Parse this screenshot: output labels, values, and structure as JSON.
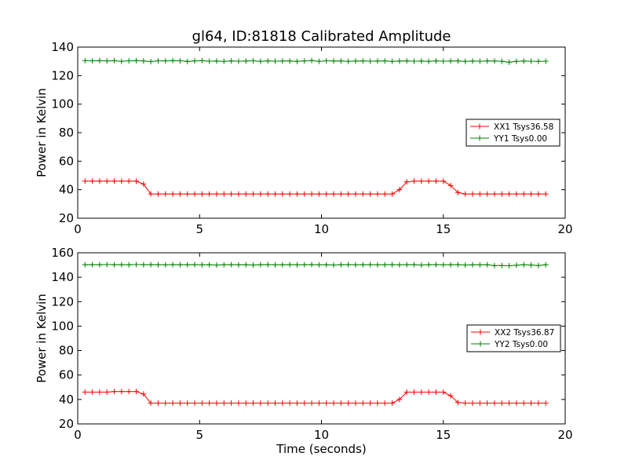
{
  "chart_data": [
    {
      "type": "line",
      "title": "gl64, ID:81818 Calibrated Amplitude",
      "xlabel": "",
      "ylabel": "Power in Kelvin",
      "xlim": [
        0,
        20
      ],
      "ylim": [
        20,
        140
      ],
      "xticks": [
        "0",
        "5",
        "10",
        "15",
        "20"
      ],
      "yticks": [
        "20",
        "40",
        "60",
        "80",
        "100",
        "120",
        "140"
      ],
      "legend_position": "right",
      "grid": false,
      "series": [
        {
          "name": "XX1 Tsys36.58",
          "color": "#ff0000",
          "x": [
            0.3,
            0.6,
            0.9,
            1.2,
            1.5,
            1.8,
            2.1,
            2.4,
            2.7,
            3.0,
            3.3,
            3.6,
            3.9,
            4.2,
            4.5,
            4.8,
            5.1,
            5.4,
            5.7,
            6.0,
            6.3,
            6.6,
            6.9,
            7.2,
            7.5,
            7.8,
            8.1,
            8.4,
            8.7,
            9.0,
            9.3,
            9.6,
            9.9,
            10.2,
            10.5,
            10.8,
            11.1,
            11.4,
            11.7,
            12.0,
            12.3,
            12.6,
            12.9,
            13.2,
            13.5,
            13.8,
            14.1,
            14.4,
            14.7,
            15.0,
            15.3,
            15.6,
            15.9,
            16.2,
            16.5,
            16.8,
            17.1,
            17.4,
            17.7,
            18.0,
            18.3,
            18.6,
            18.9,
            19.2
          ],
          "values": [
            46,
            46,
            46,
            46,
            46,
            46,
            46,
            46,
            44,
            37,
            37,
            37,
            37,
            37,
            37,
            37,
            37,
            37,
            37,
            37,
            37,
            37,
            37,
            37,
            37,
            37,
            37,
            37,
            37,
            37,
            37,
            37,
            37,
            37,
            37,
            37,
            37,
            37,
            37,
            37,
            37,
            37,
            37,
            40,
            45.5,
            46,
            46,
            46,
            46,
            46,
            43,
            38,
            37,
            37,
            37,
            37,
            37,
            37,
            37,
            37,
            37,
            37,
            37,
            37
          ]
        },
        {
          "name": "YY1 Tsys0.00",
          "color": "#008000",
          "x": [
            0.3,
            0.6,
            0.9,
            1.2,
            1.5,
            1.8,
            2.1,
            2.4,
            2.7,
            3.0,
            3.3,
            3.6,
            3.9,
            4.2,
            4.5,
            4.8,
            5.1,
            5.4,
            5.7,
            6.0,
            6.3,
            6.6,
            6.9,
            7.2,
            7.5,
            7.8,
            8.1,
            8.4,
            8.7,
            9.0,
            9.3,
            9.6,
            9.9,
            10.2,
            10.5,
            10.8,
            11.1,
            11.4,
            11.7,
            12.0,
            12.3,
            12.6,
            12.9,
            13.2,
            13.5,
            13.8,
            14.1,
            14.4,
            14.7,
            15.0,
            15.3,
            15.6,
            15.9,
            16.2,
            16.5,
            16.8,
            17.1,
            17.4,
            17.7,
            18.0,
            18.3,
            18.6,
            18.9,
            19.2
          ],
          "values": [
            130.5,
            130.4,
            130.5,
            130.3,
            130.5,
            130.0,
            130.4,
            130.5,
            130.3,
            129.8,
            130.4,
            130.3,
            130.5,
            130.4,
            129.9,
            130.3,
            130.5,
            130.1,
            130.2,
            130.0,
            130.3,
            130.1,
            130.2,
            130.4,
            130.0,
            130.3,
            130.1,
            130.2,
            130.3,
            130.0,
            130.3,
            130.6,
            130.0,
            130.4,
            130.2,
            130.3,
            130.0,
            130.2,
            130.3,
            130.1,
            130.2,
            130.3,
            130.0,
            130.2,
            130.3,
            130.1,
            130.2,
            130.0,
            130.3,
            130.1,
            130.2,
            130.3,
            130.0,
            130.2,
            130.1,
            130.3,
            130.2,
            130.0,
            129.4,
            130.0,
            130.2,
            130.1,
            130.0,
            130.1
          ]
        }
      ]
    },
    {
      "type": "line",
      "title": "",
      "xlabel": "Time (seconds)",
      "ylabel": "Power in Kelvin",
      "xlim": [
        0,
        20
      ],
      "ylim": [
        20,
        160
      ],
      "xticks": [
        "0",
        "5",
        "10",
        "15",
        "20"
      ],
      "yticks": [
        "20",
        "40",
        "60",
        "80",
        "100",
        "120",
        "140",
        "160"
      ],
      "legend_position": "right",
      "grid": false,
      "series": [
        {
          "name": "XX2 Tsys36.87",
          "color": "#ff0000",
          "x": [
            0.3,
            0.6,
            0.9,
            1.2,
            1.5,
            1.8,
            2.1,
            2.4,
            2.7,
            3.0,
            3.3,
            3.6,
            3.9,
            4.2,
            4.5,
            4.8,
            5.1,
            5.4,
            5.7,
            6.0,
            6.3,
            6.6,
            6.9,
            7.2,
            7.5,
            7.8,
            8.1,
            8.4,
            8.7,
            9.0,
            9.3,
            9.6,
            9.9,
            10.2,
            10.5,
            10.8,
            11.1,
            11.4,
            11.7,
            12.0,
            12.3,
            12.6,
            12.9,
            13.2,
            13.5,
            13.8,
            14.1,
            14.4,
            14.7,
            15.0,
            15.3,
            15.6,
            15.9,
            16.2,
            16.5,
            16.8,
            17.1,
            17.4,
            17.7,
            18.0,
            18.3,
            18.6,
            18.9,
            19.2
          ],
          "values": [
            46,
            46,
            46,
            46,
            46.5,
            46.5,
            46.5,
            46.5,
            44.5,
            37,
            37,
            37,
            37,
            37,
            37,
            37,
            37,
            37,
            37,
            37,
            37,
            37,
            37,
            37,
            37,
            37,
            37,
            37,
            37,
            37,
            37,
            37,
            37,
            37,
            37,
            37,
            37,
            37,
            37,
            37,
            37,
            37,
            37,
            40,
            46,
            46,
            46,
            46,
            46,
            46,
            43,
            37.5,
            37,
            37,
            37,
            37,
            37,
            37,
            37,
            37,
            37,
            37,
            37,
            37
          ]
        },
        {
          "name": "YY2 Tsys0.00",
          "color": "#008000",
          "x": [
            0.3,
            0.6,
            0.9,
            1.2,
            1.5,
            1.8,
            2.1,
            2.4,
            2.7,
            3.0,
            3.3,
            3.6,
            3.9,
            4.2,
            4.5,
            4.8,
            5.1,
            5.4,
            5.7,
            6.0,
            6.3,
            6.6,
            6.9,
            7.2,
            7.5,
            7.8,
            8.1,
            8.4,
            8.7,
            9.0,
            9.3,
            9.6,
            9.9,
            10.2,
            10.5,
            10.8,
            11.1,
            11.4,
            11.7,
            12.0,
            12.3,
            12.6,
            12.9,
            13.2,
            13.5,
            13.8,
            14.1,
            14.4,
            14.7,
            15.0,
            15.3,
            15.6,
            15.9,
            16.2,
            16.5,
            16.8,
            17.1,
            17.4,
            17.7,
            18.0,
            18.3,
            18.6,
            18.9,
            19.2
          ],
          "values": [
            150.2,
            150.3,
            150.2,
            150.4,
            150.2,
            150.3,
            150.1,
            150.4,
            150.2,
            150.3,
            150.2,
            150.1,
            150.3,
            150.2,
            150.2,
            150.3,
            150.1,
            150.2,
            150.0,
            150.2,
            150.3,
            150.1,
            150.2,
            150.0,
            150.2,
            150.3,
            150.1,
            150.2,
            150.3,
            150.1,
            150.2,
            150.3,
            150.1,
            150.2,
            150.0,
            150.2,
            150.3,
            150.1,
            150.2,
            150.3,
            150.1,
            150.2,
            150.3,
            150.1,
            150.2,
            150.3,
            150.0,
            150.2,
            150.3,
            150.1,
            150.2,
            150.3,
            150.0,
            150.2,
            150.1,
            150.2,
            149.5,
            149.6,
            149.4,
            149.8,
            150.2,
            150.0,
            149.6,
            150.2
          ]
        }
      ]
    }
  ]
}
